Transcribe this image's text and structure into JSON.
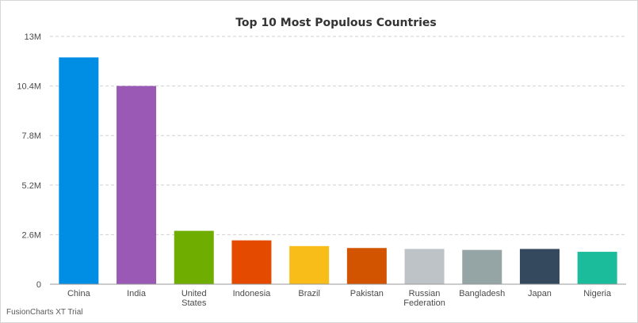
{
  "chart_data": {
    "type": "bar",
    "title": "Top 10 Most Populous Countries",
    "xlabel": "",
    "ylabel": "",
    "categories": [
      [
        "China"
      ],
      [
        "India"
      ],
      [
        "United",
        "States"
      ],
      [
        "Indonesia"
      ],
      [
        "Brazil"
      ],
      [
        "Pakistan"
      ],
      [
        "Russian",
        "Federation"
      ],
      [
        "Bangladesh"
      ],
      [
        "Japan"
      ],
      [
        "Nigeria"
      ]
    ],
    "values": [
      11900000,
      10400000,
      2800000,
      2300000,
      2000000,
      1900000,
      1850000,
      1800000,
      1850000,
      1700000
    ],
    "colors": [
      "#008ee4",
      "#9b59b6",
      "#6fad00",
      "#e44a00",
      "#f8bd19",
      "#d35400",
      "#bdc3c7",
      "#95a5a6",
      "#34495e",
      "#1abc9c"
    ],
    "ylim": [
      0,
      13000000
    ],
    "yticks": [
      {
        "value": 0,
        "label": "0"
      },
      {
        "value": 2600000,
        "label": "2.6M"
      },
      {
        "value": 5200000,
        "label": "5.2M"
      },
      {
        "value": 7800000,
        "label": "7.8M"
      },
      {
        "value": 10400000,
        "label": "10.4M"
      },
      {
        "value": 13000000,
        "label": "13M"
      }
    ],
    "grid": true,
    "legend": "none"
  },
  "credit": "FusionCharts XT Trial"
}
